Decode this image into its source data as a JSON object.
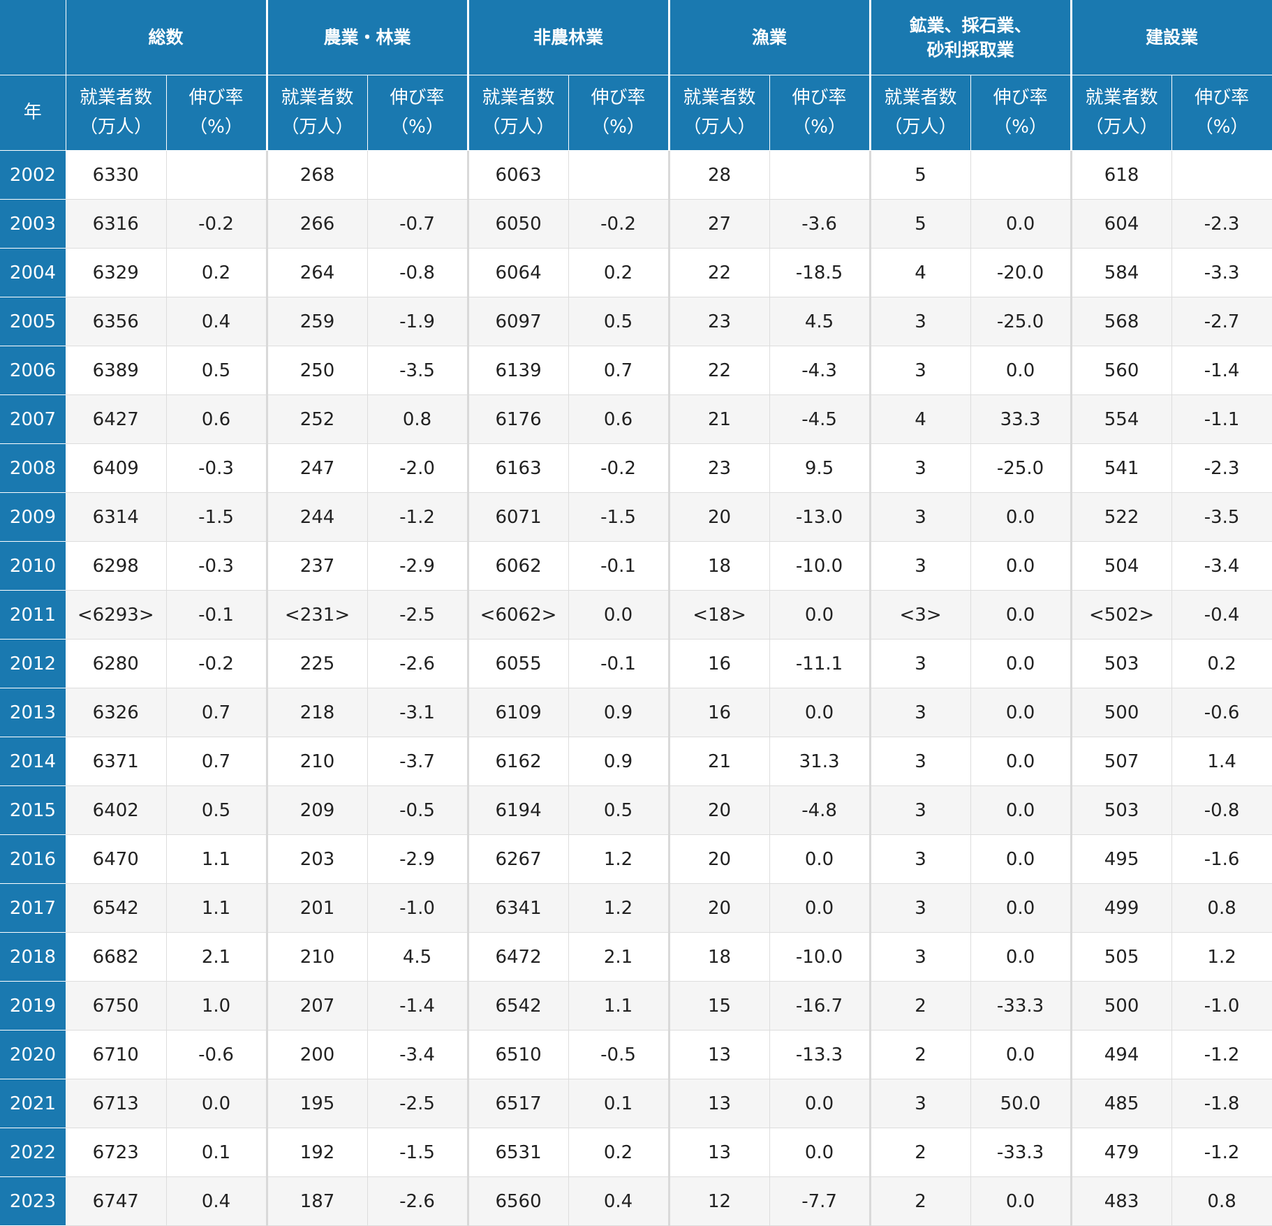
{
  "header": {
    "year_label": "年",
    "groups": [
      "総数",
      "農業・林業",
      "非農林業",
      "漁業",
      "鉱業、採石業、\n砂利採取業",
      "建設業"
    ],
    "sub_count": "就業者数\n（万人）",
    "sub_rate": "伸び率\n（%）"
  },
  "rows": [
    {
      "year": "2002",
      "cells": [
        "6330",
        "",
        "268",
        "",
        "6063",
        "",
        "28",
        "",
        "5",
        "",
        "618",
        ""
      ]
    },
    {
      "year": "2003",
      "cells": [
        "6316",
        "-0.2",
        "266",
        "-0.7",
        "6050",
        "-0.2",
        "27",
        "-3.6",
        "5",
        "0.0",
        "604",
        "-2.3"
      ]
    },
    {
      "year": "2004",
      "cells": [
        "6329",
        "0.2",
        "264",
        "-0.8",
        "6064",
        "0.2",
        "22",
        "-18.5",
        "4",
        "-20.0",
        "584",
        "-3.3"
      ]
    },
    {
      "year": "2005",
      "cells": [
        "6356",
        "0.4",
        "259",
        "-1.9",
        "6097",
        "0.5",
        "23",
        "4.5",
        "3",
        "-25.0",
        "568",
        "-2.7"
      ]
    },
    {
      "year": "2006",
      "cells": [
        "6389",
        "0.5",
        "250",
        "-3.5",
        "6139",
        "0.7",
        "22",
        "-4.3",
        "3",
        "0.0",
        "560",
        "-1.4"
      ]
    },
    {
      "year": "2007",
      "cells": [
        "6427",
        "0.6",
        "252",
        "0.8",
        "6176",
        "0.6",
        "21",
        "-4.5",
        "4",
        "33.3",
        "554",
        "-1.1"
      ]
    },
    {
      "year": "2008",
      "cells": [
        "6409",
        "-0.3",
        "247",
        "-2.0",
        "6163",
        "-0.2",
        "23",
        "9.5",
        "3",
        "-25.0",
        "541",
        "-2.3"
      ]
    },
    {
      "year": "2009",
      "cells": [
        "6314",
        "-1.5",
        "244",
        "-1.2",
        "6071",
        "-1.5",
        "20",
        "-13.0",
        "3",
        "0.0",
        "522",
        "-3.5"
      ]
    },
    {
      "year": "2010",
      "cells": [
        "6298",
        "-0.3",
        "237",
        "-2.9",
        "6062",
        "-0.1",
        "18",
        "-10.0",
        "3",
        "0.0",
        "504",
        "-3.4"
      ]
    },
    {
      "year": "2011",
      "cells": [
        "<6293>",
        "-0.1",
        "<231>",
        "-2.5",
        "<6062>",
        "0.0",
        "<18>",
        "0.0",
        "<3>",
        "0.0",
        "<502>",
        "-0.4"
      ]
    },
    {
      "year": "2012",
      "cells": [
        "6280",
        "-0.2",
        "225",
        "-2.6",
        "6055",
        "-0.1",
        "16",
        "-11.1",
        "3",
        "0.0",
        "503",
        "0.2"
      ]
    },
    {
      "year": "2013",
      "cells": [
        "6326",
        "0.7",
        "218",
        "-3.1",
        "6109",
        "0.9",
        "16",
        "0.0",
        "3",
        "0.0",
        "500",
        "-0.6"
      ]
    },
    {
      "year": "2014",
      "cells": [
        "6371",
        "0.7",
        "210",
        "-3.7",
        "6162",
        "0.9",
        "21",
        "31.3",
        "3",
        "0.0",
        "507",
        "1.4"
      ]
    },
    {
      "year": "2015",
      "cells": [
        "6402",
        "0.5",
        "209",
        "-0.5",
        "6194",
        "0.5",
        "20",
        "-4.8",
        "3",
        "0.0",
        "503",
        "-0.8"
      ]
    },
    {
      "year": "2016",
      "cells": [
        "6470",
        "1.1",
        "203",
        "-2.9",
        "6267",
        "1.2",
        "20",
        "0.0",
        "3",
        "0.0",
        "495",
        "-1.6"
      ]
    },
    {
      "year": "2017",
      "cells": [
        "6542",
        "1.1",
        "201",
        "-1.0",
        "6341",
        "1.2",
        "20",
        "0.0",
        "3",
        "0.0",
        "499",
        "0.8"
      ]
    },
    {
      "year": "2018",
      "cells": [
        "6682",
        "2.1",
        "210",
        "4.5",
        "6472",
        "2.1",
        "18",
        "-10.0",
        "3",
        "0.0",
        "505",
        "1.2"
      ]
    },
    {
      "year": "2019",
      "cells": [
        "6750",
        "1.0",
        "207",
        "-1.4",
        "6542",
        "1.1",
        "15",
        "-16.7",
        "2",
        "-33.3",
        "500",
        "-1.0"
      ]
    },
    {
      "year": "2020",
      "cells": [
        "6710",
        "-0.6",
        "200",
        "-3.4",
        "6510",
        "-0.5",
        "13",
        "-13.3",
        "2",
        "0.0",
        "494",
        "-1.2"
      ]
    },
    {
      "year": "2021",
      "cells": [
        "6713",
        "0.0",
        "195",
        "-2.5",
        "6517",
        "0.1",
        "13",
        "0.0",
        "3",
        "50.0",
        "485",
        "-1.8"
      ]
    },
    {
      "year": "2022",
      "cells": [
        "6723",
        "0.1",
        "192",
        "-1.5",
        "6531",
        "0.2",
        "13",
        "0.0",
        "2",
        "-33.3",
        "479",
        "-1.2"
      ]
    },
    {
      "year": "2023",
      "cells": [
        "6747",
        "0.4",
        "187",
        "-2.6",
        "6560",
        "0.4",
        "12",
        "-7.7",
        "2",
        "0.0",
        "483",
        "0.8"
      ]
    }
  ]
}
